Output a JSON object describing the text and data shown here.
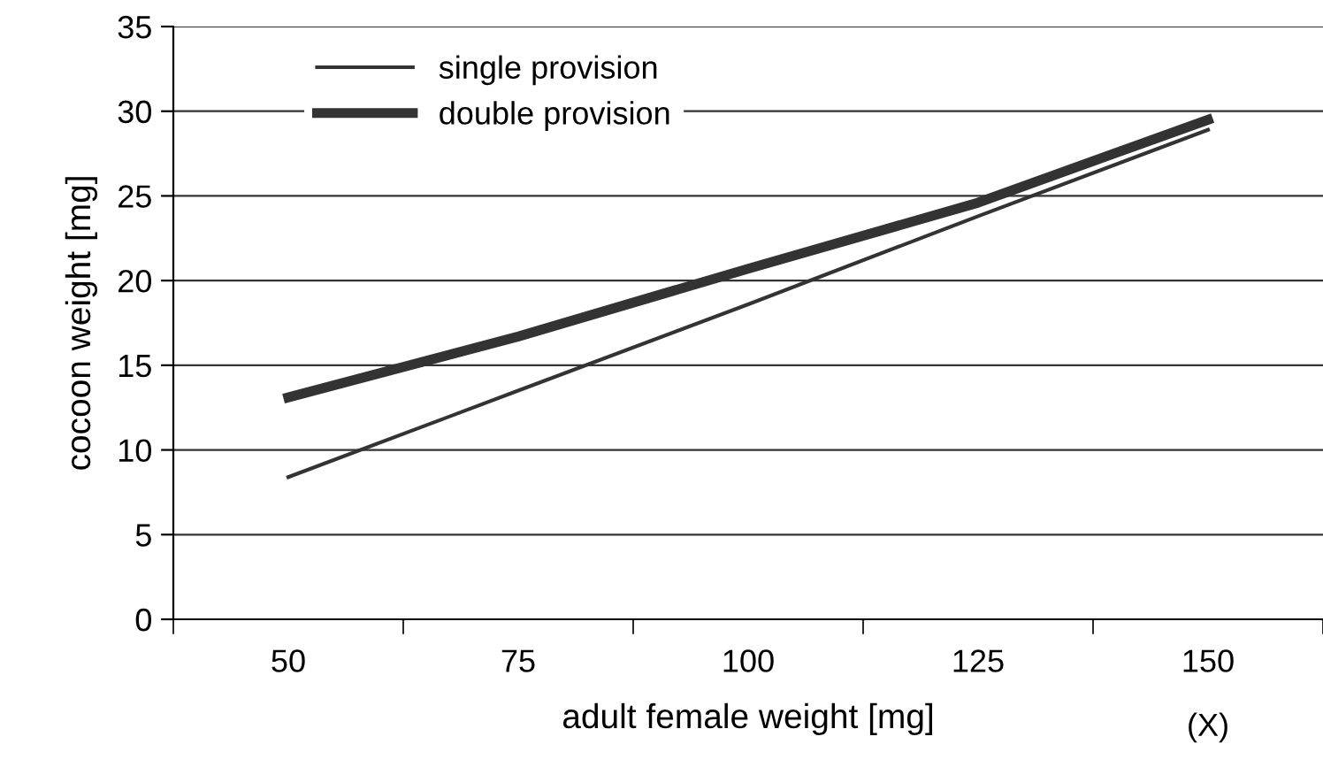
{
  "chart_data": {
    "type": "line",
    "xlabel": "adult female weight [mg]",
    "ylabel": "cocoon weight [mg]",
    "categories": [
      "50",
      "75",
      "100",
      "125",
      "150"
    ],
    "series": [
      {
        "name": "single provision",
        "color": "#333333",
        "values": [
          8.4,
          13.5,
          18.6,
          23.8,
          28.9
        ]
      },
      {
        "name": "double provision",
        "color": "#333333",
        "values": [
          13.1,
          16.7,
          20.7,
          24.6,
          29.5
        ]
      }
    ],
    "ylim": [
      0,
      35
    ],
    "yticks": [
      0,
      5,
      10,
      15,
      20,
      25,
      30,
      35
    ],
    "grid": "y",
    "legend": "top left",
    "marker": "none",
    "line_style": "solid",
    "annotations": [
      "(X)"
    ]
  }
}
